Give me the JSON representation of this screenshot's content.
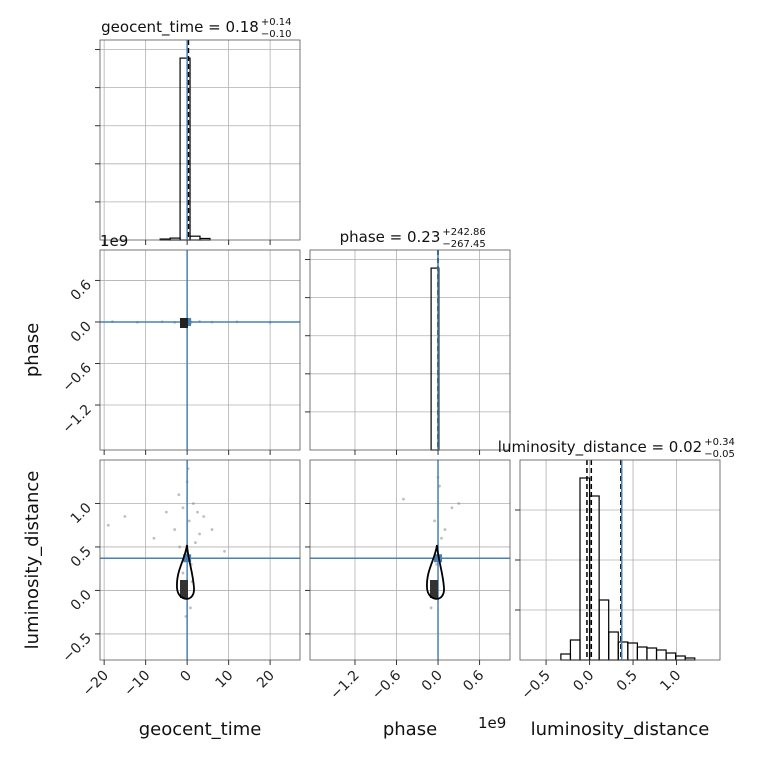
{
  "chart_data": {
    "type": "corner",
    "offset_label": "1e9",
    "truth_color": "#4682b4",
    "hist_color": "#000000",
    "point_color": "#808080",
    "grid": true,
    "parameters": [
      {
        "label": "geocent_time",
        "title": "geocent_time = 0.18",
        "upper": "+0.14",
        "lower": "−0.10",
        "lim": [
          -21,
          27.2
        ],
        "ticks": [
          {
            "value": -20,
            "label": "−20"
          },
          {
            "value": -10,
            "label": "−10"
          },
          0,
          10,
          20
        ],
        "truth": 0,
        "quantiles": [
          0.08,
          0.18,
          0.32
        ],
        "bins": [
          -6.5,
          -4.1,
          -1.7,
          0.7,
          3.1,
          5.5
        ],
        "counts": [
          0.005,
          0.01,
          0.955,
          0.02,
          0.008
        ],
        "hist_ylim": [
          0,
          1.05
        ],
        "hist_yticks": [
          0.2,
          0.4,
          0.6,
          0.8,
          1.0
        ]
      },
      {
        "label": "phase",
        "title": "phase = 0.23",
        "upper": "+242.86",
        "lower": "−267.45",
        "lim": [
          -1.85,
          1.04
        ],
        "ticks": [
          {
            "value": -1.2,
            "label": "−1.2"
          },
          {
            "value": -0.6,
            "label": "−0.6"
          },
          {
            "value": 0,
            "label": "0.0"
          },
          0.6
        ],
        "truth": 0,
        "quantiles": [
          -2.672e-07,
          2.3e-10,
          2.431e-07
        ],
        "bins": [
          -0.1,
          0.012
        ],
        "counts": [
          0.955
        ],
        "hist_ylim": [
          0,
          1.05
        ],
        "hist_yticks": [
          0.2,
          0.4,
          0.6,
          0.8,
          1.0
        ]
      },
      {
        "label": "luminosity_distance",
        "title": "luminosity_distance = 0.02",
        "upper": "+0.34",
        "lower": "−0.05",
        "lim": [
          -0.8,
          1.5
        ],
        "ticks": [
          {
            "value": -0.5,
            "label": "−0.5"
          },
          {
            "value": 0,
            "label": "0.0"
          },
          0.5,
          {
            "value": 1,
            "label": "1.0"
          }
        ],
        "truth": 0.37,
        "quantiles": [
          -0.03,
          0.02,
          0.36
        ],
        "bins": [
          -0.33,
          -0.22,
          -0.11,
          0,
          0.11,
          0.22,
          0.33,
          0.44,
          0.55,
          0.66,
          0.77,
          0.88,
          0.99,
          1.1,
          1.21
        ],
        "counts": [
          0.03,
          0.1,
          0.91,
          0.82,
          0.3,
          0.14,
          0.09,
          0.085,
          0.065,
          0.06,
          0.05,
          0.035,
          0.02,
          0.01
        ],
        "hist_ylim": [
          0,
          1
        ],
        "hist_yticks": [
          0.25,
          0.5,
          0.75
        ]
      }
    ],
    "pairs": [
      {
        "x_param": 0,
        "y_param": 1,
        "x": [
          -18,
          -12,
          -6,
          -3,
          -1,
          1,
          3,
          6,
          12,
          20
        ],
        "y": [
          0.005,
          -0.004,
          0.003,
          -0.006,
          0.004,
          -0.003,
          0.006,
          -0.002,
          0.002,
          -0.005
        ]
      },
      {
        "x_param": 0,
        "y_param": 2,
        "x": [
          -19,
          -15,
          -8,
          -5,
          -3,
          -2,
          -1,
          -0.5,
          0,
          0.5,
          1,
          1.5,
          2,
          3,
          4,
          6,
          9,
          -1,
          0.8,
          -0.3,
          0.2,
          1.2,
          -1.8,
          2.5
        ],
        "y": [
          0.75,
          0.85,
          0.6,
          0.9,
          0.7,
          1.1,
          0.95,
          0.4,
          1.25,
          0.8,
          0.3,
          1.0,
          0.55,
          0.65,
          0.85,
          0.7,
          0.45,
          0.2,
          -0.2,
          -0.3,
          1.4,
          0.1,
          0.5,
          0.9
        ]
      },
      {
        "x_param": 1,
        "y_param": 2,
        "x": [
          -0.5,
          0.3,
          0.2,
          -0.05,
          0.02,
          0.05,
          -0.02,
          0.0,
          0.1,
          -0.1
        ],
        "y": [
          1.05,
          1.0,
          0.95,
          0.8,
          1.2,
          0.6,
          0.3,
          1.3,
          0.7,
          -0.2
        ]
      }
    ]
  }
}
